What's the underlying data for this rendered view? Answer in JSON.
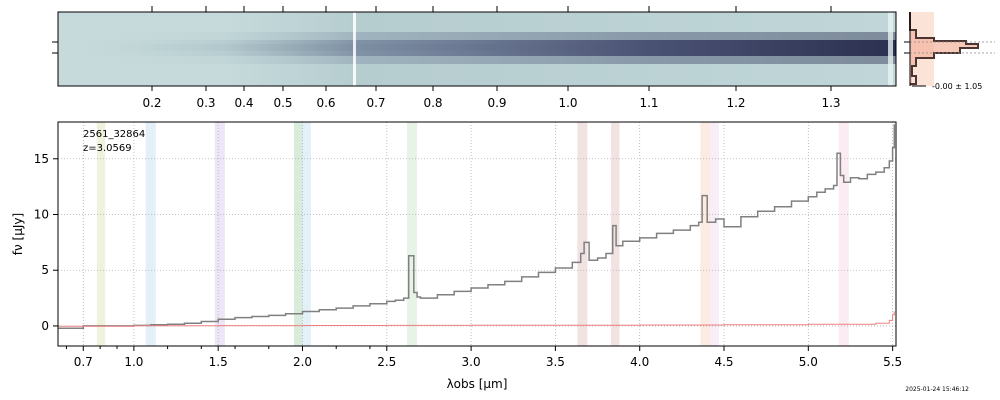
{
  "chart_data": [
    {
      "type": "heatmap",
      "description_role": "2D spectrum",
      "top_tick_labels": [
        "0.2",
        "0.3",
        "0.4",
        "0.5",
        "0.6",
        "0.7",
        "0.8",
        "0.9",
        "1.0",
        "1.1",
        "1.2",
        "1.3"
      ],
      "top_tick_values": [
        0.2,
        0.3,
        0.4,
        0.5,
        0.6,
        0.7,
        0.8,
        0.9,
        1.0,
        1.1,
        1.2,
        1.3
      ],
      "colormap": [
        "#c6dadb",
        "#9fb6bf",
        "#5d6a86",
        "#2b3050"
      ]
    },
    {
      "type": "line",
      "description_role": "profile histogram",
      "label": "-0.00 ± 1.05",
      "colors": {
        "fill": "#f7c9b6",
        "line": "#4a3530"
      }
    },
    {
      "type": "line",
      "title": "",
      "annotation_id": "2561_32864",
      "annotation_z": "z=3.0569",
      "xlabel": "λobs [μm]",
      "ylabel": "fν [μJy]",
      "xlim": [
        0.55,
        5.52
      ],
      "ylim": [
        -1.8,
        18.3
      ],
      "x_tick_labels": [
        "0.7",
        "1.0",
        "1.5",
        "2.0",
        "2.5",
        "3.0",
        "3.5",
        "4.0",
        "4.5",
        "5.0",
        "5.5"
      ],
      "x_tick_values": [
        0.7,
        1.0,
        1.5,
        2.0,
        2.5,
        3.0,
        3.5,
        4.0,
        4.5,
        5.0,
        5.5
      ],
      "y_tick_labels": [
        "0",
        "5",
        "10",
        "15"
      ],
      "y_tick_values": [
        0,
        5,
        10,
        15
      ],
      "grid": true,
      "series": [
        {
          "color": "#808080",
          "x": [
            0.55,
            0.7,
            0.8,
            1.0,
            1.1,
            1.2,
            1.3,
            1.4,
            1.5,
            1.6,
            1.7,
            1.8,
            1.9,
            2.0,
            2.1,
            2.2,
            2.3,
            2.4,
            2.5,
            2.55,
            2.6,
            2.63,
            2.66,
            2.68,
            2.7,
            2.8,
            2.9,
            3.0,
            3.1,
            3.2,
            3.3,
            3.4,
            3.5,
            3.6,
            3.65,
            3.67,
            3.7,
            3.75,
            3.8,
            3.84,
            3.86,
            3.9,
            4.0,
            4.1,
            4.2,
            4.3,
            4.35,
            4.37,
            4.4,
            4.45,
            4.5,
            4.6,
            4.7,
            4.8,
            4.9,
            5.0,
            5.05,
            5.1,
            5.15,
            5.17,
            5.19,
            5.21,
            5.25,
            5.3,
            5.35,
            5.4,
            5.45,
            5.48,
            5.5,
            5.51
          ],
          "y": [
            -0.2,
            0.0,
            0.0,
            0.05,
            0.1,
            0.15,
            0.25,
            0.4,
            0.6,
            0.75,
            0.85,
            0.95,
            1.1,
            1.3,
            1.45,
            1.6,
            1.8,
            2.0,
            2.2,
            2.3,
            2.5,
            6.3,
            3.0,
            2.6,
            2.5,
            2.8,
            3.1,
            3.4,
            3.7,
            4.0,
            4.4,
            4.8,
            5.2,
            5.7,
            6.5,
            7.5,
            5.9,
            6.1,
            6.5,
            9.0,
            7.2,
            7.6,
            7.9,
            8.3,
            8.6,
            9.0,
            9.3,
            11.7,
            9.3,
            9.6,
            8.9,
            9.8,
            10.3,
            10.7,
            11.2,
            11.6,
            12.0,
            12.3,
            12.6,
            15.5,
            13.5,
            12.9,
            13.3,
            13.2,
            13.6,
            13.8,
            14.2,
            14.8,
            16.0,
            18.1
          ]
        },
        {
          "color": "#f08080",
          "x": [
            0.55,
            1.0,
            1.5,
            2.0,
            2.5,
            3.0,
            3.5,
            4.0,
            4.5,
            5.0,
            5.4,
            5.48,
            5.5,
            5.51
          ],
          "y": [
            -0.02,
            0.02,
            0.03,
            0.04,
            0.05,
            0.06,
            0.07,
            0.08,
            0.1,
            0.15,
            0.25,
            0.5,
            1.0,
            1.3
          ]
        }
      ],
      "bands": [
        {
          "x0": 0.78,
          "x1": 0.83,
          "color": "#c8d08a"
        },
        {
          "x0": 1.07,
          "x1": 1.13,
          "color": "#9ec9e6"
        },
        {
          "x0": 1.48,
          "x1": 1.54,
          "color": "#b9a6de"
        },
        {
          "x0": 1.95,
          "x1": 2.0,
          "color": "#6fba79"
        },
        {
          "x0": 2.0,
          "x1": 2.05,
          "color": "#9ec9e6"
        },
        {
          "x0": 2.62,
          "x1": 2.68,
          "color": "#a6d3a4"
        },
        {
          "x0": 3.63,
          "x1": 3.69,
          "color": "#d29a9a"
        },
        {
          "x0": 3.83,
          "x1": 3.88,
          "color": "#d29a9a"
        },
        {
          "x0": 4.36,
          "x1": 4.42,
          "color": "#f3b79a"
        },
        {
          "x0": 4.42,
          "x1": 4.47,
          "color": "#e6c3e6"
        },
        {
          "x0": 5.18,
          "x1": 5.24,
          "color": "#f2b7cf"
        }
      ]
    }
  ],
  "timestamp": "2025-01-24 15:46:12"
}
